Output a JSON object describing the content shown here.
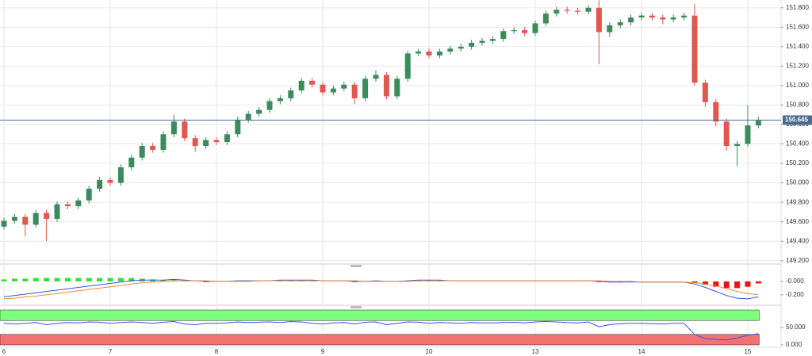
{
  "chart_data": [
    {
      "type": "candlestick",
      "categories": [
        "6",
        null,
        null,
        null,
        null,
        null,
        null,
        null,
        null,
        null,
        "7",
        null,
        null,
        null,
        null,
        null,
        null,
        null,
        null,
        null,
        "8",
        null,
        null,
        null,
        null,
        null,
        null,
        null,
        null,
        null,
        "9",
        null,
        null,
        null,
        null,
        null,
        null,
        null,
        null,
        null,
        "10",
        null,
        null,
        null,
        null,
        null,
        null,
        null,
        null,
        null,
        "13",
        null,
        null,
        null,
        null,
        null,
        null,
        null,
        null,
        null,
        "14",
        null,
        null,
        null,
        null,
        null,
        null,
        null,
        null,
        null,
        "15",
        null
      ],
      "open": [
        149.55,
        149.61,
        149.65,
        149.57,
        149.69,
        149.63,
        149.78,
        149.76,
        149.82,
        149.94,
        150.03,
        150.0,
        150.16,
        150.26,
        150.38,
        150.34,
        150.5,
        150.63,
        150.46,
        150.38,
        150.44,
        150.42,
        150.5,
        150.65,
        150.71,
        150.75,
        150.84,
        150.87,
        150.95,
        151.05,
        151.01,
        150.93,
        150.97,
        151.01,
        150.87,
        151.07,
        151.11,
        150.89,
        151.07,
        151.33,
        151.35,
        151.31,
        151.35,
        151.38,
        151.4,
        151.44,
        151.46,
        151.48,
        151.56,
        151.57,
        151.54,
        151.64,
        151.74,
        151.78,
        151.77,
        151.76,
        151.8,
        151.55,
        151.62,
        151.65,
        151.7,
        151.72,
        151.7,
        151.68,
        151.7,
        151.72,
        151.03,
        150.83,
        150.63,
        150.38,
        150.4,
        150.59
      ],
      "high": [
        149.64,
        149.68,
        149.68,
        149.72,
        149.72,
        149.81,
        149.81,
        149.85,
        149.97,
        150.06,
        150.06,
        150.19,
        150.29,
        150.41,
        150.41,
        150.53,
        150.7,
        150.66,
        150.49,
        150.47,
        150.47,
        150.53,
        150.68,
        150.74,
        150.78,
        150.87,
        150.9,
        150.98,
        151.08,
        151.08,
        151.04,
        151.0,
        151.04,
        151.04,
        151.1,
        151.16,
        151.14,
        151.1,
        151.36,
        151.38,
        151.38,
        151.38,
        151.41,
        151.43,
        151.47,
        151.49,
        151.51,
        151.59,
        151.6,
        151.6,
        151.67,
        151.77,
        151.81,
        151.81,
        151.8,
        151.83,
        151.88,
        151.65,
        151.68,
        151.73,
        151.75,
        151.75,
        151.73,
        151.73,
        151.75,
        151.84,
        151.06,
        150.86,
        150.66,
        150.43,
        150.8,
        150.68
      ],
      "low": [
        149.52,
        149.58,
        149.45,
        149.54,
        149.4,
        149.6,
        149.73,
        149.73,
        149.79,
        149.91,
        149.97,
        149.97,
        150.13,
        150.23,
        150.31,
        150.31,
        150.47,
        150.43,
        150.32,
        150.35,
        150.39,
        150.39,
        150.47,
        150.62,
        150.68,
        150.72,
        150.81,
        150.84,
        150.92,
        150.98,
        150.9,
        150.9,
        150.94,
        150.81,
        150.84,
        151.04,
        150.86,
        150.86,
        151.04,
        151.3,
        151.28,
        151.28,
        151.32,
        151.35,
        151.37,
        151.41,
        151.43,
        151.45,
        151.53,
        151.51,
        151.51,
        151.61,
        151.71,
        151.74,
        151.73,
        151.73,
        151.22,
        151.5,
        151.59,
        151.62,
        151.67,
        151.67,
        151.63,
        151.65,
        151.67,
        151.0,
        150.78,
        150.58,
        150.33,
        150.17,
        150.37,
        150.56
      ],
      "close": [
        149.61,
        149.65,
        149.57,
        149.69,
        149.63,
        149.78,
        149.76,
        149.82,
        149.94,
        150.03,
        150.0,
        150.16,
        150.26,
        150.38,
        150.34,
        150.5,
        150.63,
        150.46,
        150.38,
        150.44,
        150.42,
        150.5,
        150.65,
        150.71,
        150.75,
        150.84,
        150.87,
        150.95,
        151.05,
        151.01,
        150.93,
        150.97,
        151.01,
        150.87,
        151.07,
        151.11,
        150.89,
        151.07,
        151.33,
        151.35,
        151.31,
        151.35,
        151.38,
        151.4,
        151.44,
        151.46,
        151.48,
        151.56,
        151.57,
        151.54,
        151.64,
        151.74,
        151.78,
        151.77,
        151.76,
        151.8,
        151.55,
        151.62,
        151.65,
        151.7,
        151.72,
        151.7,
        151.68,
        151.7,
        151.72,
        151.03,
        150.83,
        150.63,
        150.38,
        150.4,
        150.59,
        150.64
      ],
      "up_color": "#3d8a5c",
      "down_color": "#e0574f",
      "ylim": [
        149.19,
        151.88
      ],
      "yticks": [
        {
          "value": 149.2,
          "label": "149.200"
        },
        {
          "value": 149.4,
          "label": "149.400"
        },
        {
          "value": 149.6,
          "label": "149.600"
        },
        {
          "value": 149.8,
          "label": "149.800"
        },
        {
          "value": 150.0,
          "label": "150.000"
        },
        {
          "value": 150.2,
          "label": "150.200"
        },
        {
          "value": 150.4,
          "label": "150.400"
        },
        {
          "value": 150.6,
          "label": "150.600"
        },
        {
          "value": 150.8,
          "label": "150.800"
        },
        {
          "value": 151.0,
          "label": "151.000"
        },
        {
          "value": 151.2,
          "label": "151.200"
        },
        {
          "value": 151.4,
          "label": "151.400"
        },
        {
          "value": 151.6,
          "label": "151.600"
        },
        {
          "value": 151.8,
          "label": "151.800"
        }
      ],
      "last_price": 150.645,
      "last_price_color": "#4a6a8f",
      "grid": true
    },
    {
      "type": "macd",
      "series": [
        {
          "color": "#3355dd",
          "values": [
            -0.23,
            -0.21,
            -0.19,
            -0.17,
            -0.15,
            -0.13,
            -0.11,
            -0.09,
            -0.07,
            -0.05,
            -0.03,
            -0.01,
            0.01,
            0.02,
            0.02,
            0.02,
            0.03,
            0.02,
            0.01,
            0.0,
            0.0,
            0.0,
            0.01,
            0.01,
            0.01,
            0.01,
            0.02,
            0.02,
            0.02,
            0.02,
            0.01,
            0.01,
            0.01,
            0.0,
            0.0,
            0.01,
            0.0,
            0.0,
            0.01,
            0.02,
            0.02,
            0.02,
            0.01,
            0.01,
            0.01,
            0.01,
            0.01,
            0.01,
            0.01,
            0.01,
            0.01,
            0.01,
            0.01,
            0.01,
            0.01,
            0.01,
            0.0,
            -0.01,
            -0.01,
            -0.01,
            -0.01,
            -0.01,
            -0.01,
            -0.01,
            -0.01,
            -0.04,
            -0.09,
            -0.15,
            -0.21,
            -0.25,
            -0.26,
            -0.23
          ]
        },
        {
          "color": "#f08a30",
          "values": [
            -0.26,
            -0.25,
            -0.23,
            -0.22,
            -0.2,
            -0.18,
            -0.16,
            -0.14,
            -0.12,
            -0.1,
            -0.08,
            -0.06,
            -0.04,
            -0.02,
            -0.01,
            0.0,
            0.01,
            0.01,
            0.01,
            0.01,
            0.0,
            0.0,
            0.0,
            0.0,
            0.01,
            0.01,
            0.01,
            0.01,
            0.01,
            0.01,
            0.01,
            0.01,
            0.01,
            0.01,
            0.0,
            0.0,
            0.0,
            0.0,
            0.0,
            0.01,
            0.01,
            0.01,
            0.01,
            0.01,
            0.01,
            0.01,
            0.01,
            0.01,
            0.01,
            0.01,
            0.01,
            0.01,
            0.01,
            0.01,
            0.01,
            0.01,
            0.01,
            0.0,
            0.0,
            0.0,
            -0.01,
            -0.01,
            -0.01,
            -0.01,
            -0.01,
            -0.02,
            -0.04,
            -0.07,
            -0.11,
            -0.15,
            -0.18,
            -0.2
          ]
        }
      ],
      "histogram": [
        0.03,
        0.04,
        0.04,
        0.05,
        0.05,
        0.05,
        0.05,
        0.05,
        0.05,
        0.05,
        0.05,
        0.05,
        0.05,
        0.04,
        0.03,
        0.02,
        0.02,
        0.01,
        0.0,
        -0.01,
        0.0,
        0.0,
        0.01,
        0.01,
        0.0,
        0.0,
        0.01,
        0.01,
        0.01,
        0.01,
        0.0,
        0.0,
        0.0,
        -0.01,
        0.0,
        0.01,
        0.0,
        0.0,
        0.01,
        0.01,
        0.01,
        0.01,
        0.0,
        0.0,
        0.0,
        0.0,
        0.0,
        0.0,
        0.0,
        0.0,
        0.0,
        0.0,
        0.0,
        0.0,
        0.0,
        0.0,
        -0.01,
        -0.01,
        -0.01,
        -0.01,
        0.0,
        0.0,
        0.0,
        0.0,
        0.0,
        -0.02,
        -0.05,
        -0.08,
        -0.1,
        -0.1,
        -0.08,
        -0.03
      ],
      "positive_color": "#33dd33",
      "negative_color": "#ee1111",
      "ylim": [
        -0.32,
        0.2
      ],
      "yticks": [
        {
          "value": 0,
          "label": "-0.000"
        },
        {
          "value": -0.2,
          "label": "-0.200"
        }
      ]
    },
    {
      "type": "oscillator",
      "series": [
        {
          "color": "#3355ee",
          "values": [
            62,
            60,
            62,
            64,
            58,
            62,
            64,
            63,
            66,
            65,
            62,
            64,
            66,
            64,
            62,
            65,
            67,
            60,
            58,
            62,
            62,
            63,
            66,
            64,
            65,
            66,
            64,
            67,
            66,
            62,
            60,
            63,
            64,
            60,
            65,
            66,
            58,
            62,
            66,
            65,
            62,
            64,
            63,
            62,
            64,
            63,
            63,
            64,
            65,
            63,
            66,
            67,
            66,
            64,
            63,
            66,
            52,
            58,
            61,
            62,
            62,
            61,
            60,
            62,
            62,
            30,
            18,
            16,
            14,
            20,
            28,
            32
          ]
        }
      ],
      "upper_zone": [
        70,
        100
      ],
      "upper_color": "#7dff7d",
      "lower_zone": [
        0,
        30
      ],
      "lower_color": "#f27272",
      "ylim": [
        0,
        100
      ],
      "yticks": [
        {
          "value": 0,
          "label": "0.000"
        },
        {
          "value": 50,
          "label": "50.000"
        }
      ]
    }
  ]
}
